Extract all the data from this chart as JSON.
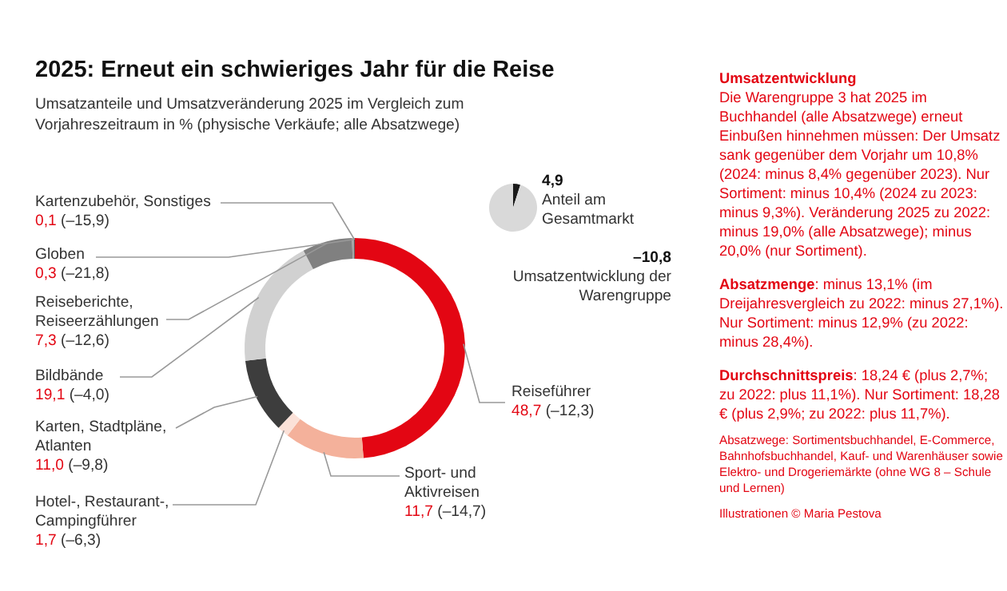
{
  "chart_data": [
    {
      "type": "donut",
      "title": "2025: Erneut ein schwieriges Jahr für die Reise",
      "subtitle": "Umsatzanteile und Umsatzveränderung 2025 im Vergleich zum Vorjahreszeitraum in % (physische Verkäufe; alle Absatzwege)",
      "categories": [
        "Reiseführer",
        "Sport- und Aktivreisen",
        "Hotel-, Restaurant-, Campingführer",
        "Karten, Stadtpläne, Atlanten",
        "Bildbände",
        "Reiseberichte, Reiseerzählungen",
        "Globen",
        "Kartenzubehör, Sonstiges"
      ],
      "values": [
        48.7,
        11.7,
        1.7,
        11.0,
        19.1,
        7.3,
        0.3,
        0.1
      ],
      "colors": [
        "#e30613",
        "#f4b19b",
        "#fbe1d8",
        "#3d3d3d",
        "#d1d1d1",
        "#808080",
        "#a6a6a6",
        "#3d3d3d"
      ],
      "value_labels": [
        "48,7 (–12,3)",
        "11,7 (–14,7)",
        "1,7 (–6,3)",
        "11,0 (–9,8)",
        "19,1 (–4,0)",
        "7,3 (–12,6)",
        "0,3 (–21,8)",
        "0,1 (–15,9)"
      ]
    },
    {
      "type": "pie",
      "categories": [
        null,
        null
      ],
      "values": [
        4.9,
        95.1
      ],
      "colors": [
        "#1a1a1a",
        "#d9d9d9"
      ],
      "annotations": [
        "4,9",
        "Anteil am Gesamtmarkt",
        "–10,8",
        "Umsatzentwicklung der Warengruppe"
      ]
    },
    {
      "type": "other",
      "annotations": [
        "Umsatzentwicklung",
        "Die Warengruppe 3 hat 2025 im Buchhandel (alle Absatzwege) erneut Einbußen hinnehmen müssen: Der Umsatz sank gegenüber dem Vorjahr um 10,8% (2024: minus 8,4% gegenüber 2023). Nur Sortiment: minus 10,4% (2024 zu 2023: minus 9,3%). Veränderung 2025 zu 2022: minus 19,0% (alle Absatzwege); minus 20,0% (nur Sortiment).",
        "Absatzmenge",
        ": minus 13,1% (im Dreijahresvergleich zu 2022: minus 27,1%). Nur Sortiment: minus 12,9% (zu 2022: minus 28,4%).",
        "Durchschnittspreis",
        ": 18,24 € (plus 2,7%; zu 2022: plus 11,1%). Nur Sortiment: 18,28 € (plus 2,9%; zu 2022: plus 11,7%).",
        "Absatzwege: Sortimentsbuchhandel, E-Commerce, Bahnhofsbuchhandel, Kauf- und Warenhäuser sowie Elektro- und Drogeriemärkte (ohne WG 8 – Schule und Lernen)",
        "Illustrationen © Maria Pestova"
      ]
    }
  ]
}
